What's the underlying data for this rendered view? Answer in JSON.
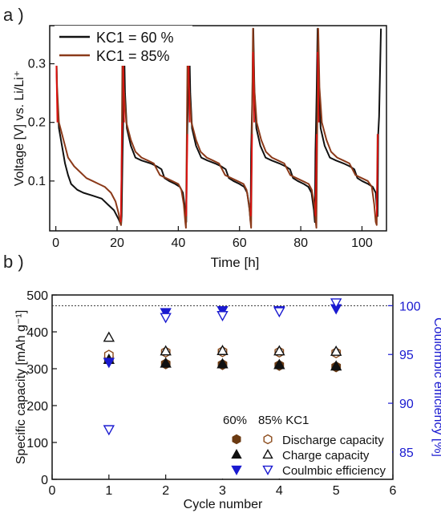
{
  "panels": {
    "a_label": "a )",
    "b_label": "b )"
  },
  "chart_data": [
    {
      "panel": "a",
      "type": "line",
      "xlabel": "Time [h]",
      "ylabel": "Voltage [V] vs. Li/Li⁺",
      "xlim": [
        -2,
        108
      ],
      "ylim": [
        0.015,
        0.365
      ],
      "xticks": [
        0,
        20,
        40,
        60,
        80,
        100
      ],
      "yticks": [
        0.1,
        0.2,
        0.3
      ],
      "legend": "top-left",
      "series": [
        {
          "name": "KC1 = 60 %",
          "color": "#111111",
          "points": [
            [
              0.0,
              0.36
            ],
            [
              0.4,
              0.25
            ],
            [
              1,
              0.19
            ],
            [
              2,
              0.16
            ],
            [
              3,
              0.13
            ],
            [
              4,
              0.11
            ],
            [
              5,
              0.095
            ],
            [
              7,
              0.085
            ],
            [
              9,
              0.08
            ],
            [
              12,
              0.075
            ],
            [
              15,
              0.07
            ],
            [
              17,
              0.06
            ],
            [
              19,
              0.05
            ],
            [
              20.5,
              0.035
            ],
            [
              21.3,
              0.025
            ],
            [
              21.5,
              0.04
            ],
            [
              21.8,
              0.15
            ],
            [
              22,
              0.2
            ],
            [
              22.2,
              0.36
            ],
            [
              22.2,
              0.36
            ],
            [
              22.6,
              0.25
            ],
            [
              23.2,
              0.19
            ],
            [
              24.5,
              0.16
            ],
            [
              26,
              0.14
            ],
            [
              28,
              0.135
            ],
            [
              31,
              0.13
            ],
            [
              33,
              0.125
            ],
            [
              34.5,
              0.12
            ],
            [
              35.5,
              0.105
            ],
            [
              37,
              0.1
            ],
            [
              39,
              0.095
            ],
            [
              40.5,
              0.09
            ],
            [
              41.5,
              0.08
            ],
            [
              42.3,
              0.05
            ],
            [
              42.6,
              0.03
            ],
            [
              42.8,
              0.15
            ],
            [
              43,
              0.2
            ],
            [
              43.2,
              0.25
            ],
            [
              43.5,
              0.36
            ],
            [
              43.5,
              0.36
            ],
            [
              43.9,
              0.25
            ],
            [
              44.5,
              0.19
            ],
            [
              45.8,
              0.16
            ],
            [
              47.5,
              0.14
            ],
            [
              49.5,
              0.135
            ],
            [
              52,
              0.13
            ],
            [
              54,
              0.125
            ],
            [
              55.5,
              0.12
            ],
            [
              56.5,
              0.105
            ],
            [
              58,
              0.1
            ],
            [
              60,
              0.095
            ],
            [
              61.5,
              0.09
            ],
            [
              62.5,
              0.08
            ],
            [
              63.3,
              0.05
            ],
            [
              63.6,
              0.03
            ],
            [
              63.8,
              0.15
            ],
            [
              64,
              0.2
            ],
            [
              64.2,
              0.25
            ],
            [
              64.5,
              0.36
            ],
            [
              64.5,
              0.36
            ],
            [
              64.9,
              0.25
            ],
            [
              65.5,
              0.19
            ],
            [
              66.8,
              0.16
            ],
            [
              68.5,
              0.14
            ],
            [
              70.5,
              0.135
            ],
            [
              73,
              0.13
            ],
            [
              75,
              0.125
            ],
            [
              76.5,
              0.12
            ],
            [
              77.5,
              0.105
            ],
            [
              79,
              0.1
            ],
            [
              81,
              0.095
            ],
            [
              82.5,
              0.09
            ],
            [
              83.5,
              0.08
            ],
            [
              84.3,
              0.05
            ],
            [
              84.6,
              0.03
            ],
            [
              84.8,
              0.15
            ],
            [
              85,
              0.2
            ],
            [
              85.2,
              0.25
            ],
            [
              85.5,
              0.36
            ],
            [
              85.5,
              0.36
            ],
            [
              85.9,
              0.25
            ],
            [
              86.5,
              0.19
            ],
            [
              87.8,
              0.16
            ],
            [
              89.5,
              0.14
            ],
            [
              91.5,
              0.135
            ],
            [
              94,
              0.13
            ],
            [
              96,
              0.125
            ],
            [
              97.5,
              0.12
            ],
            [
              98.5,
              0.105
            ],
            [
              100,
              0.1
            ],
            [
              102,
              0.095
            ],
            [
              103.5,
              0.09
            ],
            [
              104.5,
              0.08
            ],
            [
              104.9,
              0.05
            ],
            [
              105.1,
              0.04
            ],
            [
              105.3,
              0.18
            ],
            [
              105.6,
              0.21
            ],
            [
              106.2,
              0.36
            ]
          ]
        },
        {
          "name": "KC1 = 85%",
          "color": "#8b3a1a",
          "points": [
            [
              0.0,
              0.36
            ],
            [
              0.4,
              0.26
            ],
            [
              1,
              0.2
            ],
            [
              2,
              0.18
            ],
            [
              3,
              0.16
            ],
            [
              4,
              0.14
            ],
            [
              6,
              0.125
            ],
            [
              8,
              0.115
            ],
            [
              10,
              0.105
            ],
            [
              12,
              0.1
            ],
            [
              14,
              0.095
            ],
            [
              16,
              0.09
            ],
            [
              18,
              0.08
            ],
            [
              19.5,
              0.065
            ],
            [
              20.5,
              0.045
            ],
            [
              21,
              0.03
            ],
            [
              21.3,
              0.025
            ],
            [
              21.6,
              0.2
            ],
            [
              21.8,
              0.36
            ],
            [
              21.8,
              0.36
            ],
            [
              22.2,
              0.26
            ],
            [
              23,
              0.2
            ],
            [
              24.5,
              0.17
            ],
            [
              26,
              0.15
            ],
            [
              28,
              0.14
            ],
            [
              30,
              0.135
            ],
            [
              32,
              0.13
            ],
            [
              33,
              0.12
            ],
            [
              34,
              0.11
            ],
            [
              36,
              0.105
            ],
            [
              38,
              0.1
            ],
            [
              40,
              0.095
            ],
            [
              41,
              0.085
            ],
            [
              41.8,
              0.06
            ],
            [
              42.3,
              0.03
            ],
            [
              42.5,
              0.02
            ],
            [
              42.8,
              0.2
            ],
            [
              43.1,
              0.36
            ],
            [
              43.1,
              0.36
            ],
            [
              43.5,
              0.26
            ],
            [
              44.3,
              0.2
            ],
            [
              45.8,
              0.17
            ],
            [
              47.3,
              0.15
            ],
            [
              49.3,
              0.14
            ],
            [
              51.3,
              0.135
            ],
            [
              53.3,
              0.13
            ],
            [
              54.3,
              0.12
            ],
            [
              55.3,
              0.11
            ],
            [
              57.3,
              0.105
            ],
            [
              59.3,
              0.1
            ],
            [
              61.3,
              0.095
            ],
            [
              62.3,
              0.085
            ],
            [
              63.1,
              0.06
            ],
            [
              63.6,
              0.03
            ],
            [
              63.8,
              0.02
            ],
            [
              64.1,
              0.2
            ],
            [
              64.4,
              0.36
            ],
            [
              64.4,
              0.36
            ],
            [
              64.8,
              0.26
            ],
            [
              65.6,
              0.2
            ],
            [
              67.1,
              0.17
            ],
            [
              68.6,
              0.15
            ],
            [
              70.6,
              0.14
            ],
            [
              72.6,
              0.135
            ],
            [
              74.6,
              0.13
            ],
            [
              75.6,
              0.12
            ],
            [
              76.6,
              0.11
            ],
            [
              78.6,
              0.105
            ],
            [
              80.6,
              0.1
            ],
            [
              82.6,
              0.095
            ],
            [
              83.6,
              0.085
            ],
            [
              84.4,
              0.06
            ],
            [
              84.9,
              0.03
            ],
            [
              85.1,
              0.02
            ],
            [
              85.4,
              0.2
            ],
            [
              85.7,
              0.36
            ],
            [
              85.7,
              0.36
            ],
            [
              86.1,
              0.26
            ],
            [
              86.9,
              0.2
            ],
            [
              88.4,
              0.17
            ],
            [
              89.9,
              0.15
            ],
            [
              91.9,
              0.14
            ],
            [
              93.9,
              0.135
            ],
            [
              95.9,
              0.13
            ],
            [
              96.9,
              0.12
            ],
            [
              97.9,
              0.11
            ],
            [
              99.9,
              0.105
            ],
            [
              101.9,
              0.1
            ],
            [
              103.2,
              0.09
            ],
            [
              104,
              0.06
            ],
            [
              104.5,
              0.03
            ],
            [
              104.8,
              0.025
            ],
            [
              105.1,
              0.18
            ]
          ]
        }
      ],
      "accent_overlay": {
        "color": "#e01010",
        "points": [
          [
            0.1,
            0.32
          ],
          [
            0.5,
            0.2
          ],
          [
            21.2,
            0.03
          ],
          [
            21.7,
            0.2
          ],
          [
            21.9,
            0.32
          ],
          [
            22.3,
            0.2
          ],
          [
            42.6,
            0.04
          ],
          [
            43,
            0.18
          ],
          [
            43.3,
            0.32
          ],
          [
            43.7,
            0.2
          ],
          [
            63.7,
            0.04
          ],
          [
            64.1,
            0.18
          ],
          [
            64.4,
            0.32
          ],
          [
            64.8,
            0.2
          ],
          [
            84.8,
            0.04
          ],
          [
            85.2,
            0.18
          ],
          [
            85.5,
            0.32
          ],
          [
            85.9,
            0.2
          ],
          [
            104.8,
            0.04
          ],
          [
            105.2,
            0.18
          ]
        ]
      }
    },
    {
      "panel": "b",
      "type": "scatter",
      "xlabel": "Cycle number",
      "ylabel": "Specific capacity [mAh g⁻¹]",
      "y2label": "Coulombic efficiency [%]",
      "y2color": "#1a1ad0",
      "xlim": [
        0,
        6
      ],
      "ylim": [
        0,
        500
      ],
      "y2lim": [
        82.2,
        101.1
      ],
      "xticks": [
        0,
        1,
        2,
        3,
        4,
        5,
        6
      ],
      "yticks": [
        0,
        100,
        200,
        300,
        400,
        500
      ],
      "y2ticks": [
        85,
        90,
        95,
        100
      ],
      "reference_line_y2": 100,
      "legend": "bottom-right",
      "legend_header": [
        "60%",
        "85% KC1"
      ],
      "legend_labels": [
        "Discharge capacity",
        "Charge capacity",
        "Coulmbic efficiency"
      ],
      "series": [
        {
          "name": "Discharge capacity 60%",
          "marker": "hexagon-filled",
          "color": "#6b3a12",
          "axis": "left",
          "x": [
            1,
            2,
            3,
            4,
            5
          ],
          "y": [
            327,
            313,
            311,
            309,
            305
          ]
        },
        {
          "name": "Discharge capacity 85% KC1",
          "marker": "hexagon-open",
          "color": "#8b4a1a",
          "axis": "left",
          "x": [
            1,
            2,
            3,
            4,
            5
          ],
          "y": [
            337,
            345,
            346,
            345,
            343
          ]
        },
        {
          "name": "Charge capacity 60%",
          "marker": "triangle-up-filled",
          "color": "#111111",
          "axis": "left",
          "x": [
            1,
            2,
            3,
            4,
            5
          ],
          "y": [
            325,
            315,
            313,
            311,
            307
          ]
        },
        {
          "name": "Charge capacity 85% KC1",
          "marker": "triangle-up-open",
          "color": "#111111",
          "axis": "left",
          "x": [
            1,
            2,
            3,
            4,
            5
          ],
          "y": [
            385,
            348,
            349,
            348,
            347
          ]
        },
        {
          "name": "Coulmbic efficiency 60%",
          "marker": "triangle-down-filled",
          "color": "#1a1ad0",
          "axis": "right",
          "x": [
            1,
            2,
            3,
            4,
            5
          ],
          "y": [
            94.2,
            99.3,
            99.5,
            99.5,
            99.7
          ]
        },
        {
          "name": "Coulmbic efficiency 85% KC1",
          "marker": "triangle-down-open",
          "color": "#1a1ad0",
          "axis": "right",
          "x": [
            1,
            2,
            3,
            4,
            5
          ],
          "y": [
            87.3,
            98.8,
            99.0,
            99.4,
            100.3
          ]
        }
      ]
    }
  ]
}
